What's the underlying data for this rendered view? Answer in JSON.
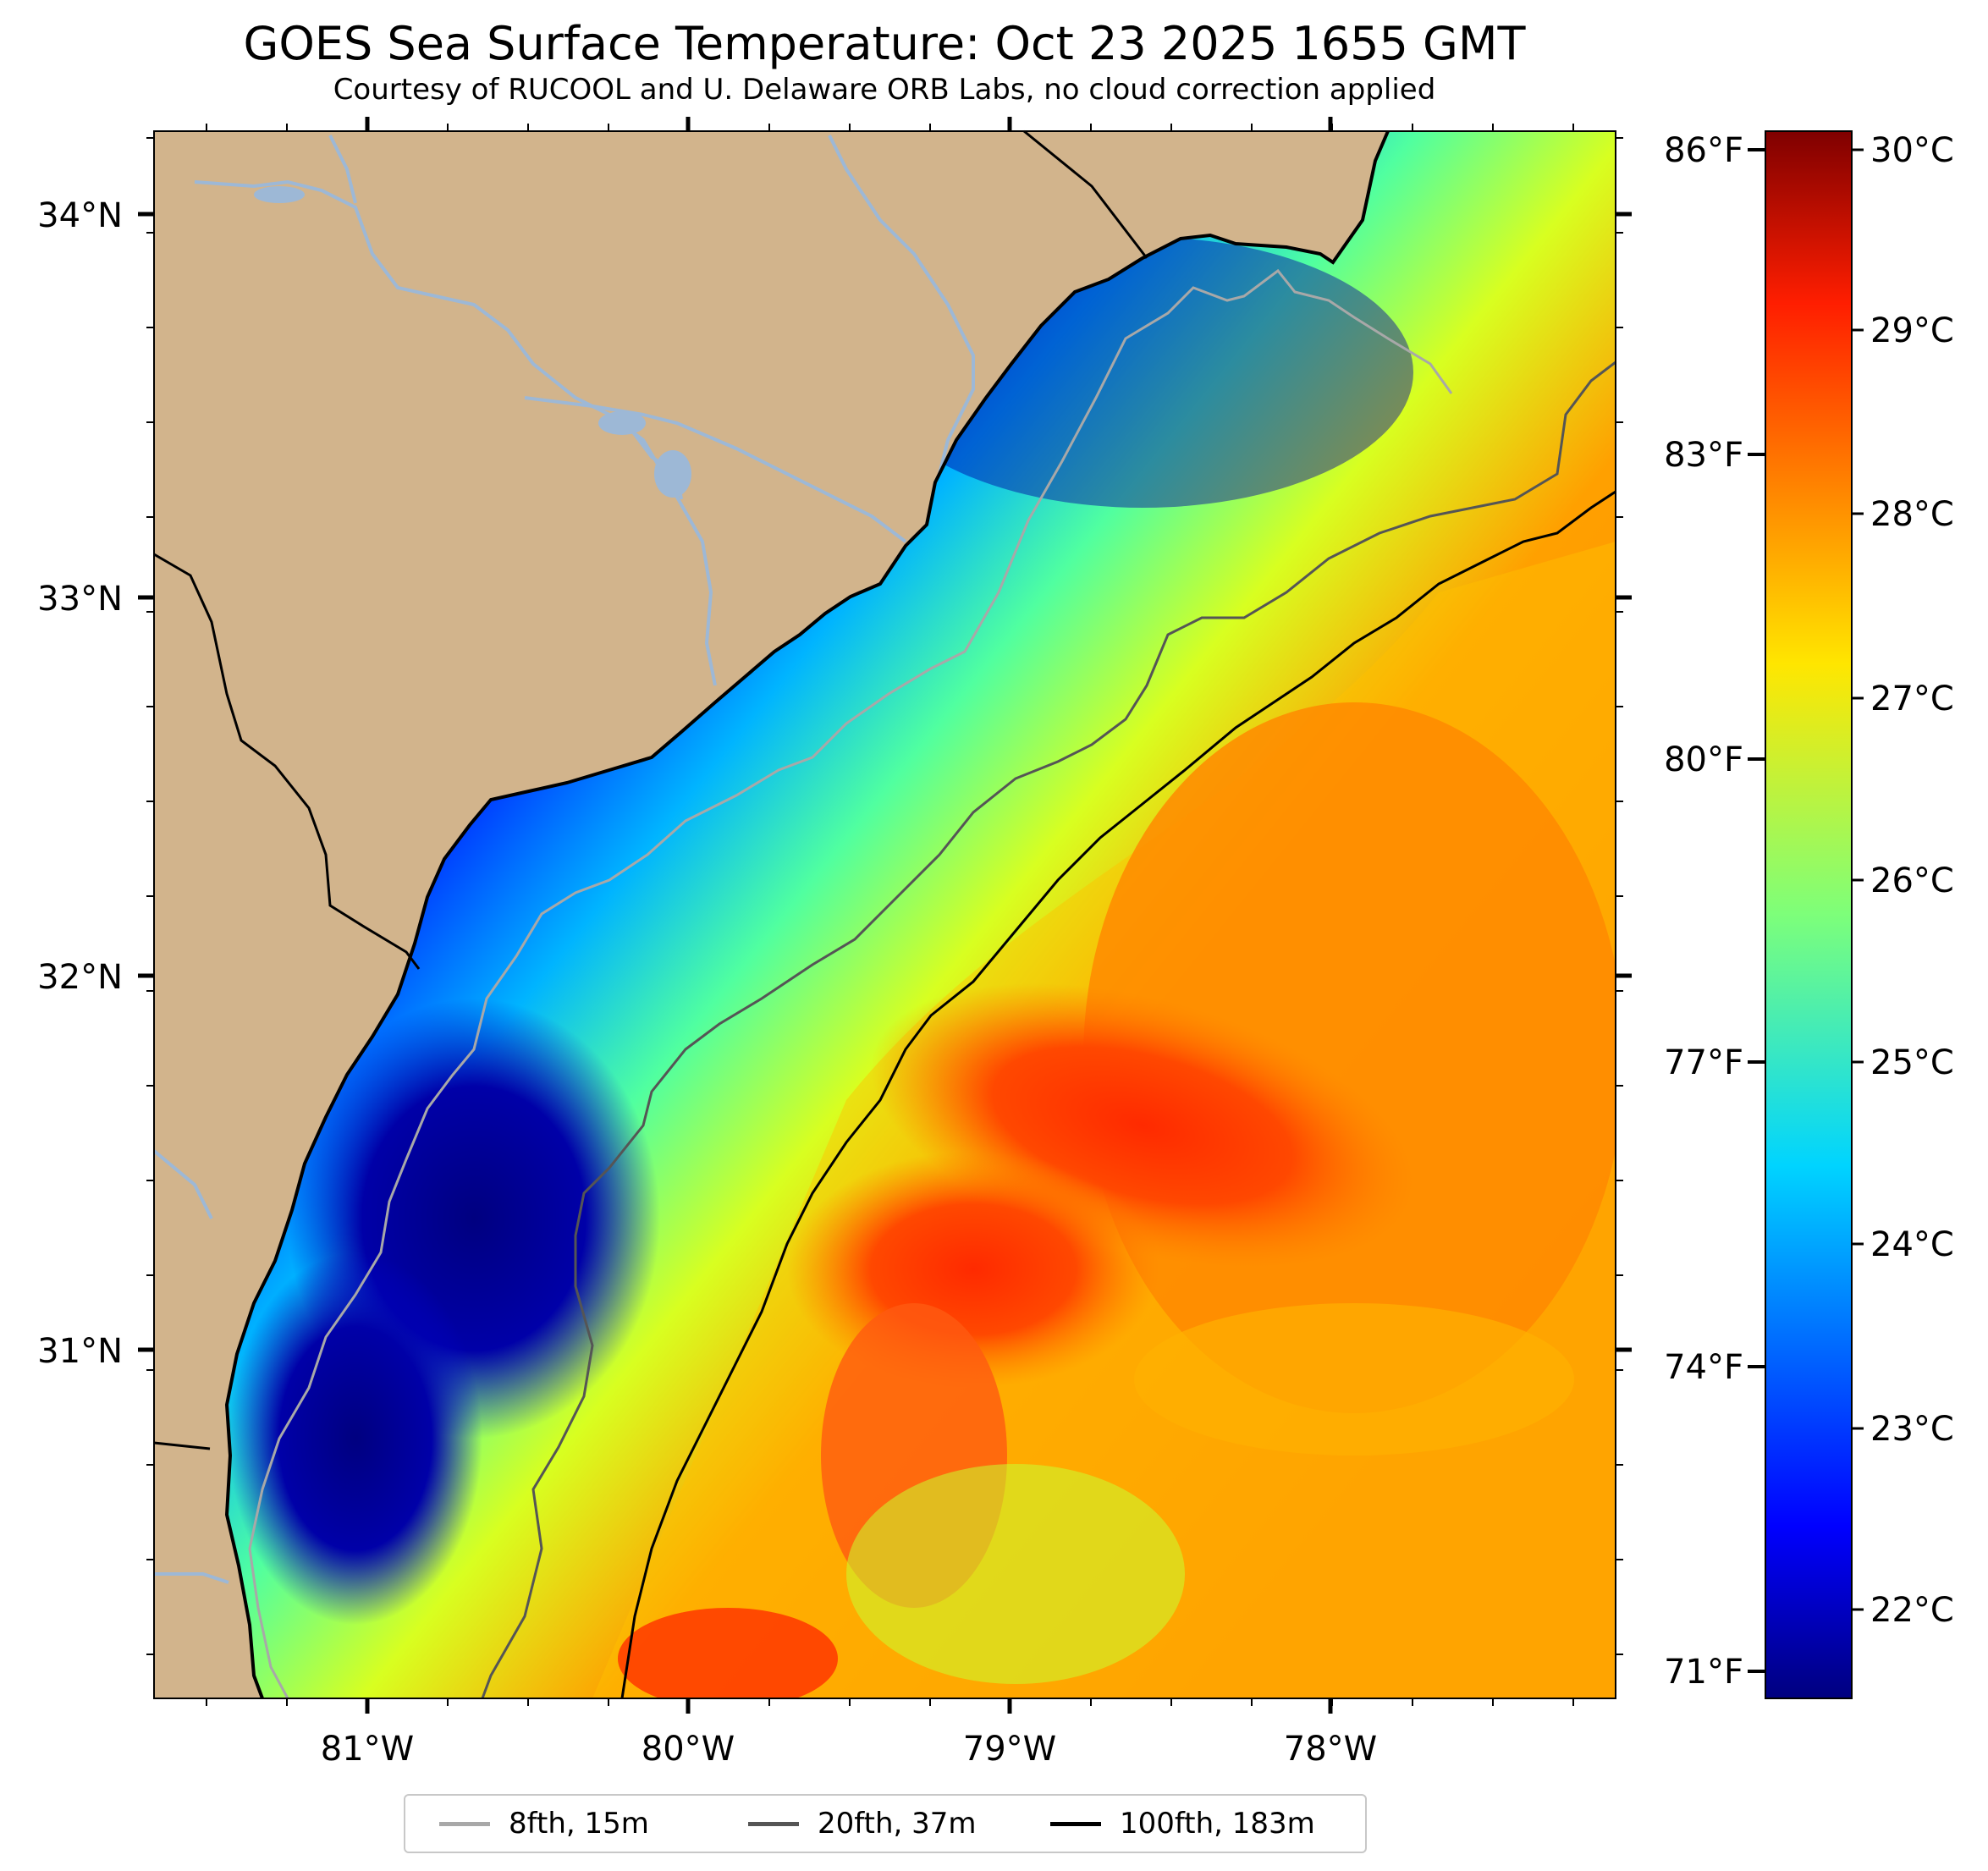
{
  "title": "GOES Sea Surface Temperature: Oct 23 2025 1655 GMT",
  "subtitle": "Courtesy of RUCOOL and U. Delaware ORB Labs, no cloud correction applied",
  "latitude_labels": [
    "34°N",
    "33°N",
    "32°N",
    "31°N"
  ],
  "longitude_labels": [
    "81°W",
    "80°W",
    "79°W",
    "78°W"
  ],
  "fahrenheit_labels": [
    "86°F",
    "83°F",
    "80°F",
    "77°F",
    "74°F",
    "71°F"
  ],
  "colorbar": {
    "labels": [
      "30°C",
      "29°C",
      "28°C",
      "27°C",
      "26°C",
      "25°C",
      "24°C",
      "23°C",
      "22°C"
    ],
    "colormap": "jet",
    "range_c": [
      21.5,
      30.2
    ]
  },
  "legend": [
    {
      "label": "8fth, 15m",
      "color": "#a8a8a8"
    },
    {
      "label": "20fth, 37m",
      "color": "#555555"
    },
    {
      "label": "100fth, 183m",
      "color": "#000000"
    }
  ],
  "colors": {
    "land": "#d2b48c",
    "rivers": "#9db8d6",
    "coastline": "#000000"
  }
}
